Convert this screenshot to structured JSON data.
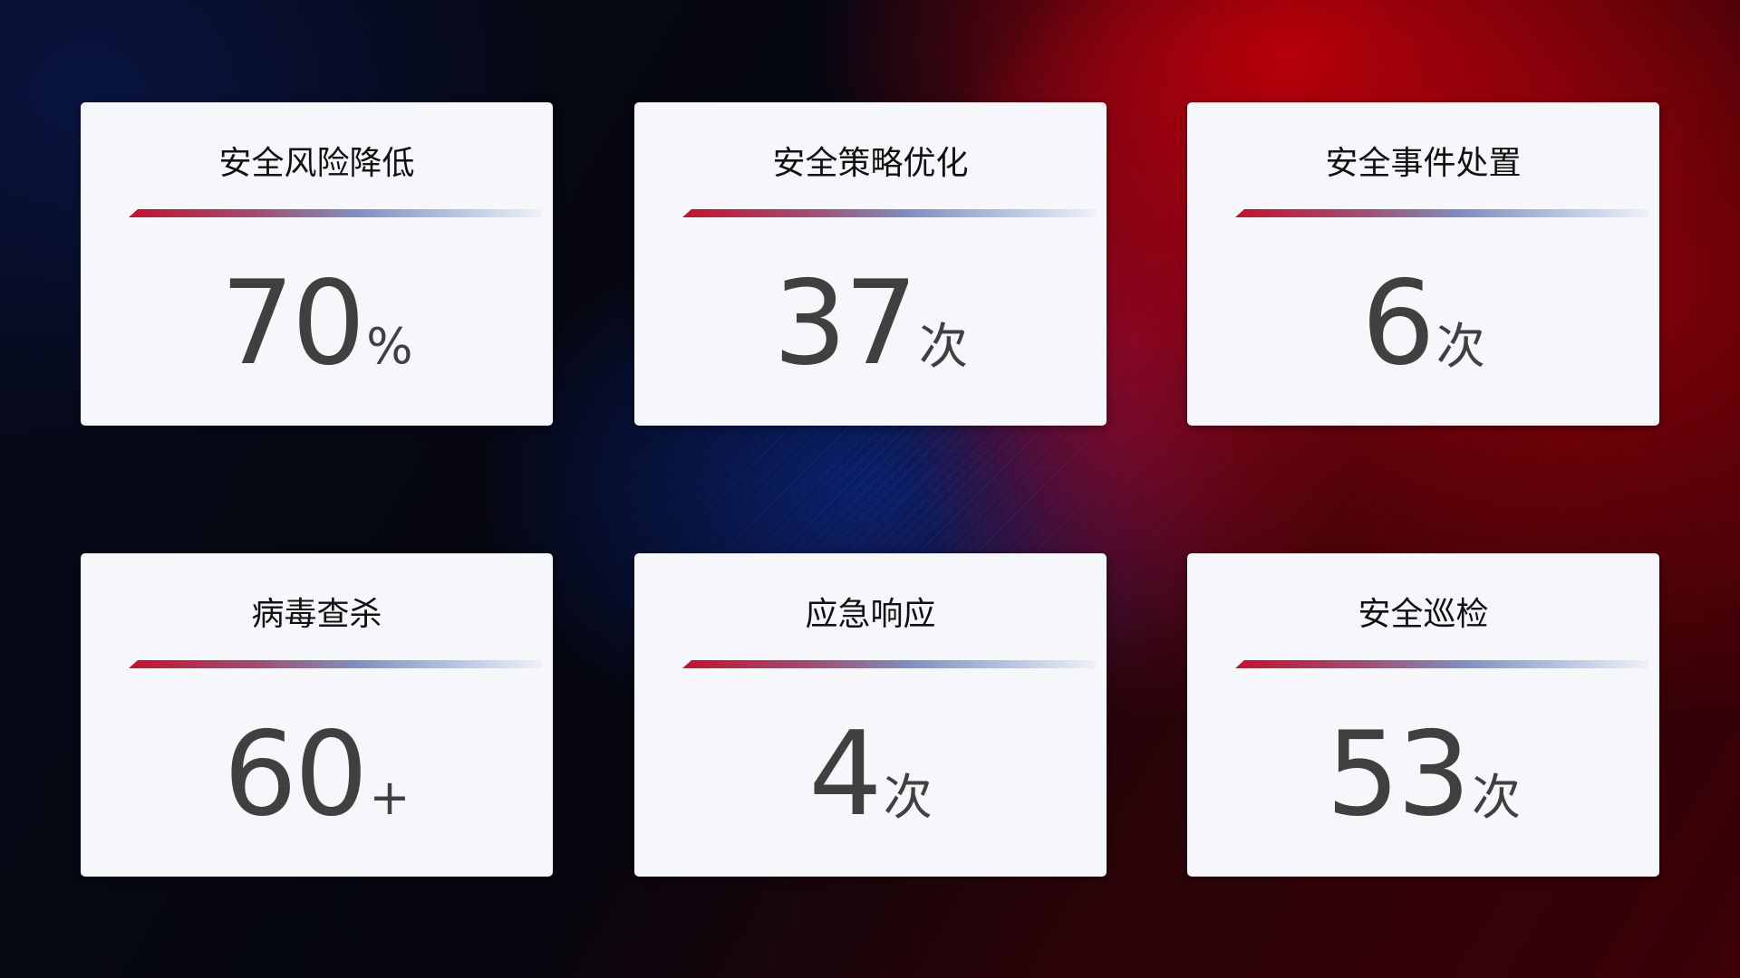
{
  "cards": [
    {
      "title": "安全风险降低",
      "value": "70",
      "unit": "%"
    },
    {
      "title": "安全策略优化",
      "value": "37",
      "unit": "次"
    },
    {
      "title": "安全事件处置",
      "value": "6",
      "unit": "次"
    },
    {
      "title": "病毒查杀",
      "value": "60",
      "unit": "+"
    },
    {
      "title": "应急响应",
      "value": "4",
      "unit": "次"
    },
    {
      "title": "安全巡检",
      "value": "53",
      "unit": "次"
    }
  ],
  "colors": {
    "accent_red": "#c8102e",
    "accent_blue": "#7f8fc0",
    "card_bg": "#f6f7fb",
    "value_text": "#404040"
  }
}
